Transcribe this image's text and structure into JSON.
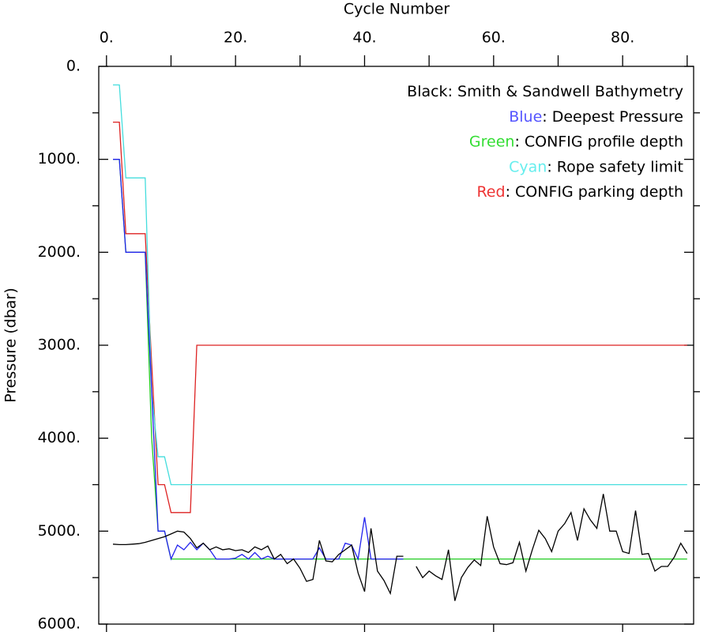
{
  "chart_data": {
    "type": "line",
    "x_label": "Cycle Number",
    "y_label": "Pressure (dbar)",
    "xlim": [
      -1.2,
      91
    ],
    "ylim": [
      6000,
      0
    ],
    "xticks": [
      {
        "value": 0,
        "label": "0."
      },
      {
        "value": 20,
        "label": "20."
      },
      {
        "value": 40,
        "label": "40."
      },
      {
        "value": 60,
        "label": "60."
      },
      {
        "value": 80,
        "label": "80."
      }
    ],
    "xminorticks": [
      10,
      30,
      50,
      70,
      90
    ],
    "yticks": [
      {
        "value": 0,
        "label": "0."
      },
      {
        "value": 1000,
        "label": "1000."
      },
      {
        "value": 2000,
        "label": "2000."
      },
      {
        "value": 3000,
        "label": "3000."
      },
      {
        "value": 4000,
        "label": "4000."
      },
      {
        "value": 5000,
        "label": "5000."
      },
      {
        "value": 6000,
        "label": "6000."
      }
    ],
    "yminorticks": [
      500,
      1500,
      2500,
      3500,
      4500,
      5500
    ],
    "legend_separator": ": ",
    "x": [
      1,
      2,
      3,
      4,
      5,
      6,
      7,
      8,
      9,
      10,
      11,
      12,
      13,
      14,
      15,
      16,
      17,
      18,
      19,
      20,
      21,
      22,
      23,
      24,
      25,
      26,
      27,
      28,
      29,
      30,
      31,
      32,
      33,
      34,
      35,
      36,
      37,
      38,
      39,
      40,
      41,
      42,
      43,
      44,
      45,
      46,
      47,
      48,
      49,
      50,
      51,
      52,
      53,
      54,
      55,
      56,
      57,
      58,
      59,
      60,
      61,
      62,
      63,
      64,
      65,
      66,
      67,
      68,
      69,
      70,
      71,
      72,
      73,
      74,
      75,
      76,
      77,
      78,
      79,
      80,
      81,
      82,
      83,
      84,
      85,
      86,
      87,
      88,
      89,
      90
    ],
    "series": [
      {
        "name": "Smith & Sandwell Bathymetry",
        "color_name": "Black",
        "color": "#000000",
        "legend_color": "#000000",
        "values": [
          5140,
          5145,
          5145,
          5140,
          5135,
          5120,
          5100,
          5080,
          5060,
          5030,
          5000,
          5010,
          5080,
          5180,
          5130,
          5200,
          5170,
          5200,
          5190,
          5210,
          5200,
          5230,
          5170,
          5200,
          5160,
          5300,
          5250,
          5350,
          5300,
          5400,
          5540,
          5520,
          5100,
          5320,
          5330,
          5250,
          5200,
          5150,
          5450,
          5650,
          4970,
          5430,
          5530,
          5670,
          5270,
          5270,
          null,
          5380,
          5500,
          5430,
          5480,
          5520,
          5200,
          5750,
          5500,
          5390,
          5310,
          5370,
          4840,
          5170,
          5350,
          5360,
          5340,
          5120,
          5430,
          5200,
          4990,
          5080,
          5220,
          5000,
          4920,
          4800,
          5100,
          4760,
          4880,
          4970,
          4600,
          5000,
          5000,
          5220,
          5240,
          4780,
          5250,
          5240,
          5430,
          5380,
          5380,
          5280,
          5130,
          5240
        ]
      },
      {
        "name": "Deepest Pressure",
        "color_name": "Blue",
        "color": "#2222ee",
        "legend_color": "#5555ff",
        "values": [
          1000,
          1000,
          2000,
          2000,
          2000,
          2000,
          3500,
          5000,
          5000,
          5300,
          5150,
          5200,
          5120,
          5200,
          5130,
          5200,
          5300,
          5300,
          5300,
          5290,
          5250,
          5300,
          5230,
          5300,
          5270,
          5300,
          5300,
          5300,
          5300,
          5300,
          5300,
          5300,
          5180,
          5300,
          5300,
          5300,
          5130,
          5150,
          5300,
          4850,
          5300,
          5300,
          5300,
          5300,
          5300,
          5300,
          null,
          null,
          null,
          null,
          null,
          null,
          null,
          null,
          null,
          null,
          null,
          null,
          null,
          null,
          null,
          null,
          null,
          null,
          null,
          null,
          null,
          null,
          null,
          null,
          null,
          null,
          null,
          null,
          null,
          null,
          null,
          null,
          null,
          null,
          null,
          null,
          null,
          null,
          null,
          null,
          null,
          null,
          null,
          null
        ]
      },
      {
        "name": "CONFIG profile depth",
        "color_name": "Green",
        "color": "#22cc22",
        "legend_color": "#33dd33",
        "values": [
          1000,
          1000,
          2000,
          2000,
          2000,
          2000,
          4000,
          5000,
          5000,
          5300,
          5300,
          5300,
          5300,
          5300,
          5300,
          5300,
          5300,
          5300,
          5300,
          5300,
          5300,
          5300,
          5300,
          5300,
          5300,
          5300,
          5300,
          5300,
          5300,
          5300,
          5300,
          5300,
          5300,
          5300,
          5300,
          5300,
          5300,
          5300,
          5300,
          5300,
          5300,
          5300,
          5300,
          5300,
          5300,
          5300,
          5300,
          5300,
          5300,
          5300,
          5300,
          5300,
          5300,
          5300,
          5300,
          5300,
          5300,
          5300,
          5300,
          5300,
          5300,
          5300,
          5300,
          5300,
          5300,
          5300,
          5300,
          5300,
          5300,
          5300,
          5300,
          5300,
          5300,
          5300,
          5300,
          5300,
          5300,
          5300,
          5300,
          5300,
          5300,
          5300,
          5300,
          5300,
          5300,
          5300,
          5300,
          5300,
          5300,
          5300
        ]
      },
      {
        "name": "Rope safety limit",
        "color_name": "Cyan",
        "color": "#44dddd",
        "legend_color": "#66eeee",
        "values": [
          200,
          200,
          1200,
          1200,
          1200,
          1200,
          3500,
          4200,
          4200,
          4500,
          4500,
          4500,
          4500,
          4500,
          4500,
          4500,
          4500,
          4500,
          4500,
          4500,
          4500,
          4500,
          4500,
          4500,
          4500,
          4500,
          4500,
          4500,
          4500,
          4500,
          4500,
          4500,
          4500,
          4500,
          4500,
          4500,
          4500,
          4500,
          4500,
          4500,
          4500,
          4500,
          4500,
          4500,
          4500,
          4500,
          4500,
          4500,
          4500,
          4500,
          4500,
          4500,
          4500,
          4500,
          4500,
          4500,
          4500,
          4500,
          4500,
          4500,
          4500,
          4500,
          4500,
          4500,
          4500,
          4500,
          4500,
          4500,
          4500,
          4500,
          4500,
          4500,
          4500,
          4500,
          4500,
          4500,
          4500,
          4500,
          4500,
          4500,
          4500,
          4500,
          4500,
          4500,
          4500,
          4500,
          4500,
          4500,
          4500,
          4500
        ]
      },
      {
        "name": "CONFIG parking depth",
        "color_name": "Red",
        "color": "#dd2222",
        "legend_color": "#ee3333",
        "values": [
          600,
          600,
          1800,
          1800,
          1800,
          1800,
          3200,
          4500,
          4500,
          4800,
          4800,
          4800,
          4800,
          3000,
          3000,
          3000,
          3000,
          3000,
          3000,
          3000,
          3000,
          3000,
          3000,
          3000,
          3000,
          3000,
          3000,
          3000,
          3000,
          3000,
          3000,
          3000,
          3000,
          3000,
          3000,
          3000,
          3000,
          3000,
          3000,
          3000,
          3000,
          3000,
          3000,
          3000,
          3000,
          3000,
          3000,
          3000,
          3000,
          3000,
          3000,
          3000,
          3000,
          3000,
          3000,
          3000,
          3000,
          3000,
          3000,
          3000,
          3000,
          3000,
          3000,
          3000,
          3000,
          3000,
          3000,
          3000,
          3000,
          3000,
          3000,
          3000,
          3000,
          3000,
          3000,
          3000,
          3000,
          3000,
          3000,
          3000,
          3000,
          3000,
          3000,
          3000,
          3000,
          3000,
          3000,
          3000,
          3000,
          3000
        ]
      }
    ]
  }
}
